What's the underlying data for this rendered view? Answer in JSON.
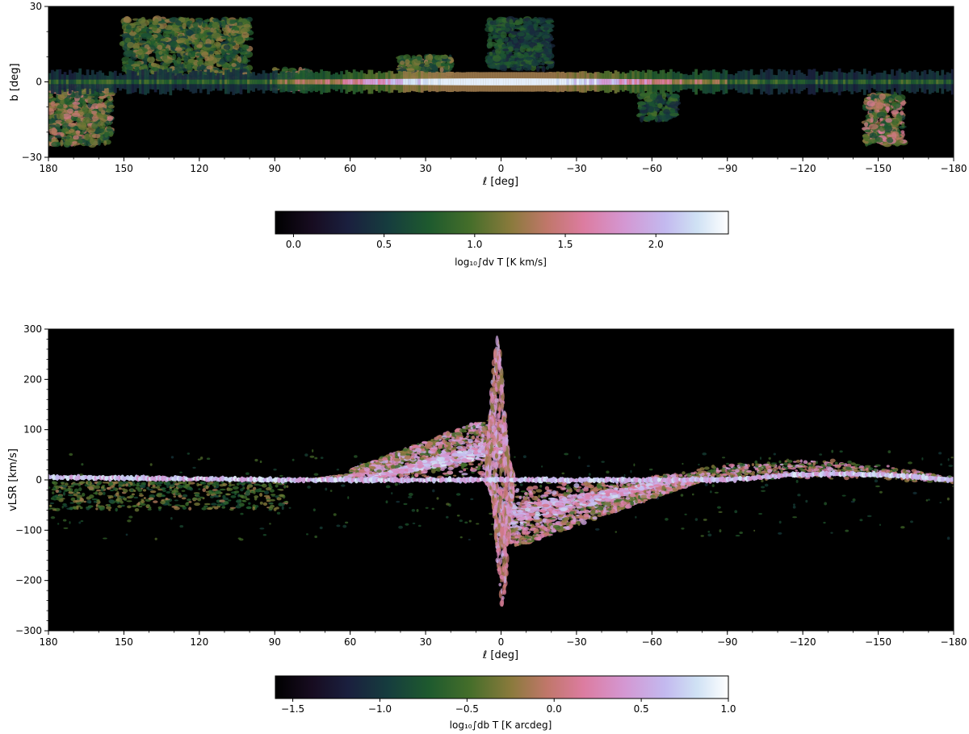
{
  "chart_data": [
    {
      "type": "heatmap",
      "subtype": "galactic-map",
      "title": "",
      "xlabel": "ℓ [deg]",
      "ylabel": "b [deg]",
      "xlim": [
        180,
        -180
      ],
      "ylim": [
        -30,
        30
      ],
      "xticks": [
        180,
        150,
        120,
        90,
        60,
        30,
        0,
        -30,
        -60,
        -90,
        -120,
        -150,
        -180
      ],
      "xtick_labels": [
        "180",
        "150",
        "120",
        "90",
        "60",
        "30",
        "0",
        "−30",
        "−60",
        "−90",
        "−120",
        "−150",
        "−180"
      ],
      "yticks": [
        -30,
        0,
        30
      ],
      "ytick_labels": [
        "−30",
        "0",
        "30"
      ],
      "background": "#000000",
      "colormap": "cubehelix",
      "colorbar": {
        "label": "log₁₀∫dv T [K km/s]",
        "range": [
          -0.1,
          2.4
        ],
        "ticks": [
          0.0,
          0.5,
          1.0,
          1.5,
          2.0
        ],
        "tick_labels": [
          "0.0",
          "0.5",
          "1.0",
          "1.5",
          "2.0"
        ]
      },
      "features": [
        {
          "name": "plane",
          "l": [
            180,
            -180
          ],
          "b_center": 0,
          "peak_log_intensity": 2.3
        },
        {
          "name": "outer-arm-north",
          "l": [
            150,
            100
          ],
          "b": [
            0,
            25
          ],
          "peak_log_intensity": 1.3
        },
        {
          "name": "cygnus",
          "l": [
            90,
            75
          ],
          "b": [
            -3,
            5
          ],
          "peak_log_intensity": 1.6
        },
        {
          "name": "aquila-rift",
          "l": [
            40,
            20
          ],
          "b": [
            0,
            10
          ],
          "peak_log_intensity": 1.4
        },
        {
          "name": "ophiuchus",
          "l": [
            5,
            -20
          ],
          "b": [
            5,
            25
          ],
          "peak_log_intensity": 0.9
        },
        {
          "name": "orion",
          "l": [
            -145,
            -160
          ],
          "b": [
            -25,
            -5
          ],
          "peak_log_intensity": 1.6
        },
        {
          "name": "taurus-perseus",
          "l": [
            180,
            155
          ],
          "b": [
            -25,
            0
          ],
          "peak_log_intensity": 1.5
        },
        {
          "name": "monoceros",
          "l": [
            -55,
            -70
          ],
          "b": [
            -15,
            -5
          ],
          "peak_log_intensity": 1.0
        }
      ]
    },
    {
      "type": "heatmap",
      "subtype": "longitude-velocity",
      "title": "",
      "xlabel": "ℓ [deg]",
      "ylabel": "vLSR [km/s]",
      "xlim": [
        180,
        -180
      ],
      "ylim": [
        -300,
        300
      ],
      "xticks": [
        180,
        150,
        120,
        90,
        60,
        30,
        0,
        -30,
        -60,
        -90,
        -120,
        -150,
        -180
      ],
      "xtick_labels": [
        "180",
        "150",
        "120",
        "90",
        "60",
        "30",
        "0",
        "−30",
        "−60",
        "−90",
        "−120",
        "−150",
        "−180"
      ],
      "yticks": [
        -300,
        -200,
        -100,
        0,
        100,
        200,
        300
      ],
      "ytick_labels": [
        "−300",
        "−200",
        "−100",
        "0",
        "100",
        "200",
        "300"
      ],
      "background": "#000000",
      "colormap": "cubehelix",
      "colorbar": {
        "label": "log₁₀∫db T [K arcdeg]",
        "range": [
          -1.6,
          1.0
        ],
        "ticks": [
          -1.5,
          -1.0,
          -0.5,
          0.0,
          0.5,
          1.0
        ],
        "tick_labels": [
          "−1.5",
          "−1.0",
          "−0.5",
          "0.0",
          "0.5",
          "1.0"
        ]
      },
      "features": [
        {
          "name": "local-gas",
          "l": [
            180,
            -180
          ],
          "v_center": 0,
          "peak_log_intensity": 0.9
        },
        {
          "name": "inner-galaxy-positive",
          "l": [
            60,
            0
          ],
          "v": [
            0,
            120
          ],
          "peak_log_intensity": 0.6
        },
        {
          "name": "inner-galaxy-negative",
          "l": [
            0,
            -60
          ],
          "v": [
            -140,
            0
          ],
          "peak_log_intensity": 0.6
        },
        {
          "name": "central-molecular-zone",
          "l": [
            5,
            -5
          ],
          "v": [
            -250,
            280
          ],
          "peak_log_intensity": 0.5
        },
        {
          "name": "outer-galaxy-positive",
          "l": [
            -90,
            -180
          ],
          "v": [
            0,
            50
          ],
          "peak_log_intensity": 0.7
        },
        {
          "name": "outer-galaxy-negative",
          "l": [
            180,
            90
          ],
          "v": [
            -60,
            0
          ],
          "peak_log_intensity": -0.3
        }
      ]
    }
  ]
}
